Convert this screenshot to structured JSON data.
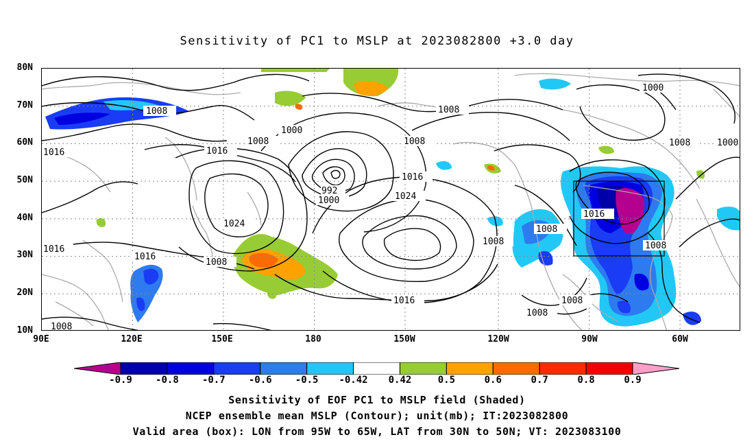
{
  "title": "Sensitivity of PC1 to MSLP at 2023082800 +3.0 day",
  "lat_labels": [
    "80N",
    "70N",
    "60N",
    "50N",
    "40N",
    "30N",
    "20N",
    "10N"
  ],
  "lon_labels": [
    "90E",
    "120E",
    "150E",
    "180",
    "150W",
    "120W",
    "90W",
    "60W"
  ],
  "contour_labels": [
    "1008",
    "1016",
    "1000",
    "1016",
    "1008",
    "1000",
    "1016",
    "1024",
    "992",
    "1000",
    "1016",
    "1024",
    "1008",
    "1008",
    "1008",
    "1016",
    "1016",
    "1008",
    "1008",
    "1008",
    "1008",
    "1000",
    "1008",
    "1000",
    "1008",
    "1016",
    "1016",
    "1008"
  ],
  "colorbar": {
    "labels": [
      "-0.9",
      "-0.8",
      "-0.7",
      "-0.6",
      "-0.5",
      "-0.42",
      "0.42",
      "0.5",
      "0.6",
      "0.7",
      "0.8",
      "0.9"
    ],
    "colors": [
      "#b5008f",
      "#0000a8",
      "#0000e0",
      "#1a3cf5",
      "#2e7bf0",
      "#22c8f5",
      "#ffffff",
      "#98cc34",
      "#ffa200",
      "#ff6a00",
      "#ff2a00",
      "#f50000",
      "#ff9fc8"
    ]
  },
  "caption_lines": [
    "Sensitivity of EOF PC1 to MSLP field (Shaded)",
    "NCEP ensemble mean MSLP (Contour); unit(mb); IT:2023082800",
    "Valid area (box): LON from 95W to 65W, LAT from 30N to 50N; VT: 2023083100"
  ]
}
